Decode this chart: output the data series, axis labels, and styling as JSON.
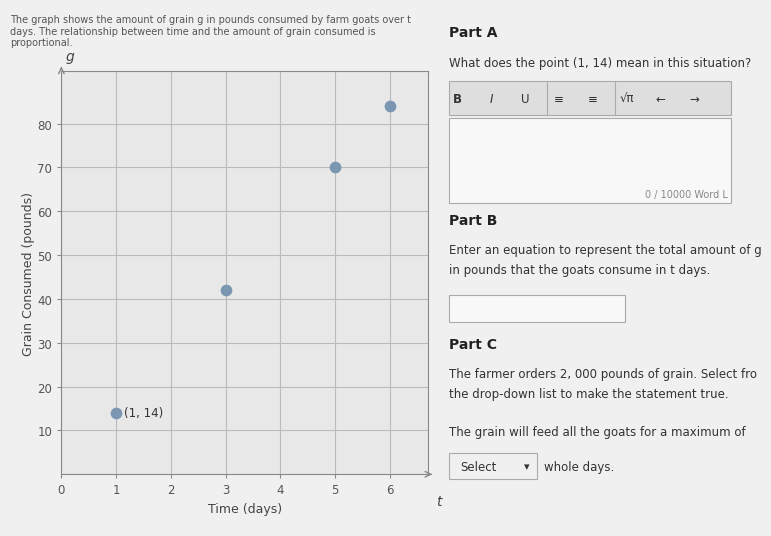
{
  "points_x": [
    1,
    3,
    5,
    6
  ],
  "points_y": [
    14,
    42,
    70,
    84
  ],
  "labeled_point_text": "(1, 14)",
  "x_label": "Time (days)",
  "y_label": "Grain Consumed (pounds)",
  "x_axis_letter": "t",
  "y_axis_letter": "g",
  "x_ticks": [
    0,
    1,
    2,
    3,
    4,
    5,
    6
  ],
  "y_ticks": [
    10,
    20,
    30,
    40,
    50,
    60,
    70,
    80
  ],
  "xlim": [
    0,
    6.7
  ],
  "ylim": [
    0,
    92
  ],
  "point_color": "#7a96b0",
  "grid_color": "#bbbbbb",
  "bg_color": "#f0f0f0",
  "plot_bg": "#e8e8e8",
  "intro_text": "The graph shows the amount of grain g in pounds consumed by farm goats over t\ndays. The relationship between time and the amount of grain consumed is\nproportional.",
  "part_a_title": "Part A",
  "part_a_question": "What does the point (1, 14) mean in this situation?",
  "toolbar_labels": [
    "B",
    "I",
    "U",
    "≡",
    "≡",
    "√π",
    "←",
    "→"
  ],
  "word_limit": "0 / 10000 Word L",
  "part_b_title": "Part B",
  "part_b_text1": "Enter an equation to represent the total amount of g",
  "part_b_text2": "in pounds that the goats consume in t days.",
  "part_c_title": "Part C",
  "part_c_text1": "The farmer orders 2, 000 pounds of grain. Select fro",
  "part_c_text2": "the drop-down list to make the statement true.",
  "part_c_text3": "The grain will feed all the goats for a maximum of",
  "select_text": "Select",
  "whole_days_text": "whole days."
}
